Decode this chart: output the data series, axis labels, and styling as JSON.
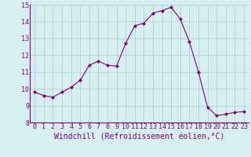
{
  "x": [
    0,
    1,
    2,
    3,
    4,
    5,
    6,
    7,
    8,
    9,
    10,
    11,
    12,
    13,
    14,
    15,
    16,
    17,
    18,
    19,
    20,
    21,
    22,
    23
  ],
  "y": [
    9.8,
    9.6,
    9.5,
    9.8,
    10.1,
    10.5,
    11.4,
    11.65,
    11.4,
    11.35,
    12.7,
    13.75,
    13.9,
    14.5,
    14.65,
    14.85,
    14.15,
    12.8,
    11.0,
    8.9,
    8.4,
    8.5,
    8.6,
    8.65
  ],
  "line_color": "#800080",
  "marker": "D",
  "marker_size": 2,
  "bg_color": "#d6f0f0",
  "grid_color": "#b0c8c8",
  "xlabel": "Windchill (Refroidissement éolien,°C)",
  "xlabel_color": "#800080",
  "tick_color": "#800080",
  "ylim": [
    8,
    15
  ],
  "xlim": [
    -0.5,
    23.5
  ],
  "yticks": [
    8,
    9,
    10,
    11,
    12,
    13,
    14,
    15
  ],
  "xticks": [
    0,
    1,
    2,
    3,
    4,
    5,
    6,
    7,
    8,
    9,
    10,
    11,
    12,
    13,
    14,
    15,
    16,
    17,
    18,
    19,
    20,
    21,
    22,
    23
  ],
  "tick_fontsize": 6,
  "xlabel_fontsize": 7
}
